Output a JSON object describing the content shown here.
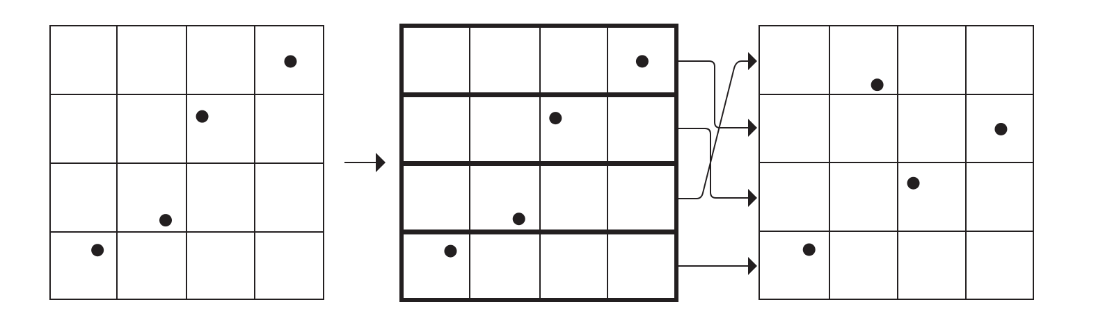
{
  "colors": {
    "line": "#231f20",
    "background": "#ffffff"
  },
  "grid_size": 4,
  "panels": [
    {
      "id": "original-grid",
      "points": [
        {
          "row": 0,
          "col": 3,
          "fx": 0.52,
          "fy": 0.52
        },
        {
          "row": 1,
          "col": 2,
          "fx": 0.23,
          "fy": 0.32
        },
        {
          "row": 2,
          "col": 1,
          "fx": 0.7,
          "fy": 0.83
        },
        {
          "row": 3,
          "col": 0,
          "fx": 0.71,
          "fy": 0.27
        }
      ]
    },
    {
      "id": "row-blocks-grid",
      "points": [
        {
          "row": 0,
          "col": 3,
          "fx": 0.52,
          "fy": 0.52
        },
        {
          "row": 1,
          "col": 2,
          "fx": 0.23,
          "fy": 0.32
        },
        {
          "row": 2,
          "col": 1,
          "fx": 0.7,
          "fy": 0.83
        },
        {
          "row": 3,
          "col": 0,
          "fx": 0.71,
          "fy": 0.27
        }
      ]
    },
    {
      "id": "permuted-grid",
      "points": [
        {
          "row": 0,
          "col": 1,
          "fx": 0.7,
          "fy": 0.86
        },
        {
          "row": 1,
          "col": 3,
          "fx": 0.52,
          "fy": 0.51
        },
        {
          "row": 2,
          "col": 2,
          "fx": 0.23,
          "fy": 0.3
        },
        {
          "row": 3,
          "col": 0,
          "fx": 0.71,
          "fy": 0.27
        }
      ]
    }
  ],
  "row_mapping": [
    {
      "from_row": 0,
      "to_row": 1
    },
    {
      "from_row": 1,
      "to_row": 2
    },
    {
      "from_row": 2,
      "to_row": 0
    },
    {
      "from_row": 3,
      "to_row": 3
    }
  ]
}
